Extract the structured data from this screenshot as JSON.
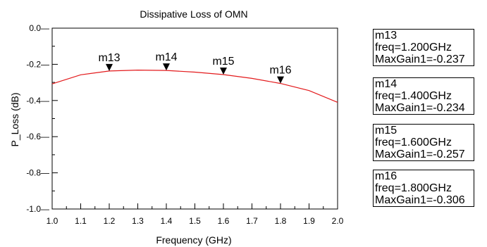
{
  "chart_data": {
    "type": "line",
    "title": "Dissipative Loss of OMN",
    "xlabel": "Frequency (GHz)",
    "ylabel": "P_Loss (dB)",
    "xlim": [
      1.0,
      2.0
    ],
    "ylim": [
      -1.0,
      0.0
    ],
    "x_ticks": [
      "1.0",
      "1.1",
      "1.2",
      "1.3",
      "1.4",
      "1.5",
      "1.6",
      "1.7",
      "1.8",
      "1.9",
      "2.0"
    ],
    "y_ticks": [
      "0.0",
      "-0.2",
      "-0.4",
      "-0.6",
      "-0.8",
      "-1.0"
    ],
    "grid": false,
    "series": [
      {
        "color": "#e31a1c",
        "x": [
          1.0,
          1.1,
          1.2,
          1.3,
          1.4,
          1.5,
          1.6,
          1.7,
          1.8,
          1.9,
          2.0
        ],
        "y": [
          -0.308,
          -0.258,
          -0.237,
          -0.232,
          -0.234,
          -0.243,
          -0.257,
          -0.278,
          -0.306,
          -0.345,
          -0.41
        ]
      }
    ],
    "markers": [
      {
        "name": "m13",
        "freq": 1.2,
        "value": -0.237,
        "lines": [
          "m13",
          "freq=1.200GHz",
          "MaxGain1=-0.237"
        ]
      },
      {
        "name": "m14",
        "freq": 1.4,
        "value": -0.234,
        "lines": [
          "m14",
          "freq=1.400GHz",
          "MaxGain1=-0.234"
        ]
      },
      {
        "name": "m15",
        "freq": 1.6,
        "value": -0.257,
        "lines": [
          "m15",
          "freq=1.600GHz",
          "MaxGain1=-0.257"
        ]
      },
      {
        "name": "m16",
        "freq": 1.8,
        "value": -0.306,
        "lines": [
          "m16",
          "freq=1.800GHz",
          "MaxGain1=-0.306"
        ]
      }
    ]
  }
}
